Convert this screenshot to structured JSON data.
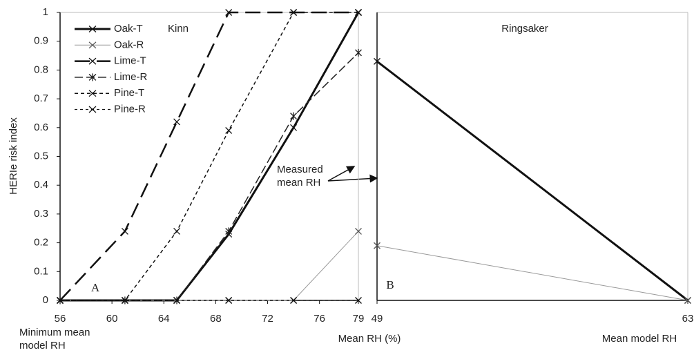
{
  "chart_data": [
    {
      "type": "line",
      "title": "Kinn",
      "ylabel": "HERIe risk index",
      "xlabel": "Mean RH (%)",
      "annotations": [
        "A",
        "Minimum mean model RH",
        "Measured mean RH"
      ],
      "x": [
        56,
        61,
        65,
        69,
        74,
        79
      ],
      "xlim": [
        56,
        79
      ],
      "xticks": [
        56,
        60,
        64,
        68,
        72,
        76,
        79
      ],
      "ylim": [
        0,
        1
      ],
      "yticks": [
        0,
        0.1,
        0.2,
        0.3,
        0.4,
        0.5,
        0.6,
        0.7,
        0.8,
        0.9,
        1
      ],
      "legend": "upper left",
      "series": [
        {
          "name": "Oak-T",
          "color": "#111111",
          "width": 3,
          "dash": "none",
          "marker": "x",
          "values": [
            0,
            0,
            0,
            0.23,
            0.6,
            1
          ]
        },
        {
          "name": "Oak-R",
          "color": "#999999",
          "width": 1,
          "dash": "none",
          "marker": "x",
          "values": [
            0,
            0,
            0,
            0,
            0,
            0.24
          ]
        },
        {
          "name": "Lime-T",
          "color": "#111111",
          "width": 2.5,
          "dash": "22 10",
          "marker": "x",
          "values": [
            0,
            0.24,
            0.62,
            1,
            1,
            1
          ]
        },
        {
          "name": "Lime-R",
          "color": "#222222",
          "width": 1.5,
          "dash": "12 5",
          "marker": "asterisk",
          "values": [
            0,
            0,
            0,
            0.24,
            0.64,
            0.86
          ]
        },
        {
          "name": "Pine-T",
          "color": "#111111",
          "width": 1.5,
          "dash": "5 4",
          "marker": "x",
          "values": [
            0,
            0,
            0.24,
            0.59,
            1,
            1
          ]
        },
        {
          "name": "Pine-R",
          "color": "#111111",
          "width": 1.2,
          "dash": "4 4",
          "marker": "x",
          "values": [
            0,
            0,
            0,
            0,
            0,
            0
          ]
        }
      ]
    },
    {
      "type": "line",
      "title": "Ringsaker",
      "xlabel": "Mean model RH",
      "annotations": [
        "B"
      ],
      "x": [
        49,
        63
      ],
      "xlim": [
        49,
        63
      ],
      "xticks": [
        49,
        63
      ],
      "ylim": [
        0,
        1
      ],
      "series": [
        {
          "color": "#111111",
          "width": 3,
          "dash": "none",
          "marker": "x",
          "values": [
            0.83,
            0
          ]
        },
        {
          "color": "#999999",
          "width": 1,
          "dash": "none",
          "marker": "x",
          "values": [
            0.19,
            0
          ]
        }
      ]
    }
  ]
}
